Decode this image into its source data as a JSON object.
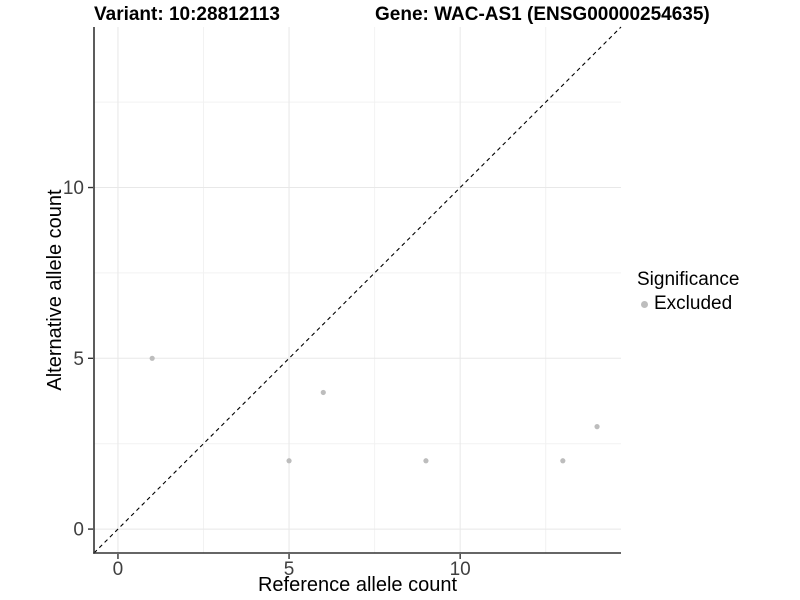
{
  "titles": {
    "variant": "Variant: 10:28812113",
    "gene": "Gene: WAC-AS1 (ENSG00000254635)"
  },
  "legend": {
    "title": "Significance",
    "items": [
      {
        "label": "Excluded",
        "color": "#bdbdbd"
      }
    ]
  },
  "colors": {
    "point": "#bdbdbd",
    "grid_major": "#e8e8e8",
    "grid_minor": "#f2f2f2",
    "axis_line": "#333333",
    "tick_mark": "#333333",
    "tick_label": "#404040",
    "identity_line": "#000000"
  },
  "chart_data": {
    "type": "scatter",
    "title": "",
    "xlabel": "Reference allele count",
    "ylabel": "Alternative allele count",
    "xlim": [
      -0.7,
      14.7
    ],
    "ylim": [
      -0.7,
      14.7
    ],
    "x_major_ticks": [
      0,
      5,
      10
    ],
    "y_major_ticks": [
      0,
      5,
      10
    ],
    "x_minor_ticks": [
      2.5,
      7.5,
      12.5
    ],
    "y_minor_ticks": [
      2.5,
      7.5,
      12.5
    ],
    "grid": true,
    "legend_position": "right",
    "identity_line": {
      "style": "dashed",
      "slope": 1,
      "intercept": 0
    },
    "series": [
      {
        "name": "Excluded",
        "color": "#bdbdbd",
        "points": [
          [
            1,
            5
          ],
          [
            5,
            2
          ],
          [
            6,
            4
          ],
          [
            9,
            2
          ],
          [
            13,
            2
          ],
          [
            14,
            3
          ]
        ]
      }
    ]
  }
}
